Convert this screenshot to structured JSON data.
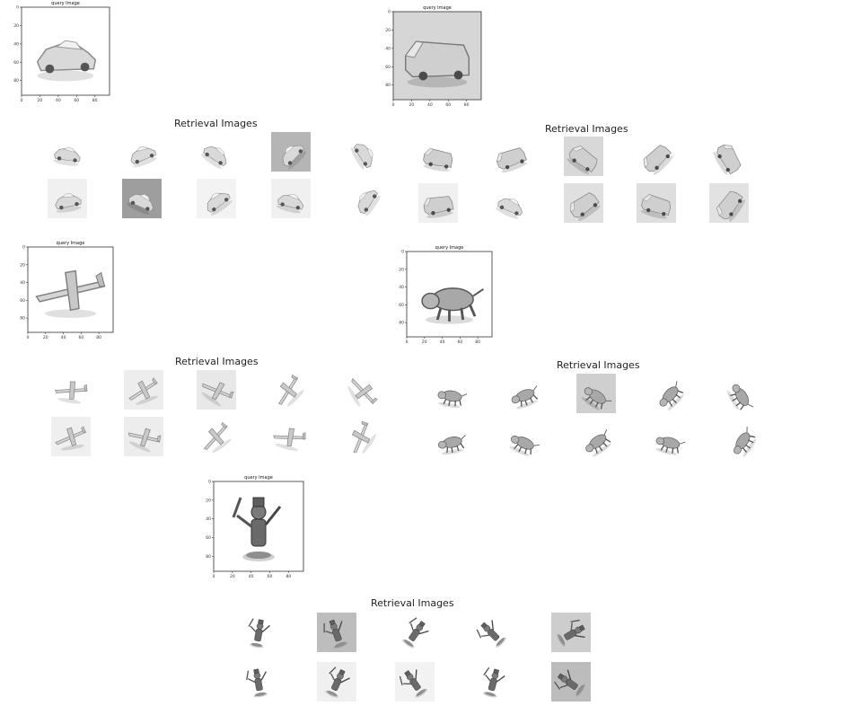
{
  "query_title": "query Image",
  "retrieval_title": "Retrieval Images",
  "axis": {
    "x_ticks": [
      "0",
      "20",
      "40",
      "60",
      "80"
    ],
    "y_ticks": [
      "0",
      "20",
      "40",
      "60",
      "80"
    ]
  },
  "groups": [
    {
      "object": "car-icon",
      "bg": "#ffffff",
      "thumbs": [
        {
          "object": "car-icon",
          "bg": "#ffffff"
        },
        {
          "object": "car-icon",
          "bg": "#ffffff"
        },
        {
          "object": "car-icon",
          "bg": "#ffffff"
        },
        {
          "object": "car-icon",
          "bg": "#b5b5b5"
        },
        {
          "object": "car-icon",
          "bg": "#ffffff"
        },
        {
          "object": "car-icon",
          "bg": "#f0f0f0"
        },
        {
          "object": "car-icon",
          "bg": "#9e9e9e"
        },
        {
          "object": "car-icon",
          "bg": "#f3f3f3"
        },
        {
          "object": "car-icon",
          "bg": "#f0f0f0"
        },
        {
          "object": "car-icon",
          "bg": "#ffffff"
        }
      ]
    },
    {
      "object": "van-icon",
      "bg": "#d6d6d6",
      "thumbs": [
        {
          "object": "van-icon",
          "bg": "#ffffff"
        },
        {
          "object": "van-icon",
          "bg": "#ffffff"
        },
        {
          "object": "van-icon",
          "bg": "#d8d8d8"
        },
        {
          "object": "van-icon",
          "bg": "#ffffff"
        },
        {
          "object": "van-icon",
          "bg": "#ffffff"
        },
        {
          "object": "van-icon",
          "bg": "#f0f0f0"
        },
        {
          "object": "car-icon",
          "bg": "#ffffff"
        },
        {
          "object": "van-icon",
          "bg": "#e0e0e0"
        },
        {
          "object": "van-icon",
          "bg": "#dedede"
        },
        {
          "object": "van-icon",
          "bg": "#e2e2e2"
        }
      ]
    },
    {
      "object": "airplane-icon",
      "bg": "#ffffff",
      "thumbs": [
        {
          "object": "airplane-icon",
          "bg": "#ffffff"
        },
        {
          "object": "airplane-icon",
          "bg": "#ededed"
        },
        {
          "object": "airplane-icon",
          "bg": "#e8e8e8"
        },
        {
          "object": "airplane-icon",
          "bg": "#ffffff"
        },
        {
          "object": "airplane-icon",
          "bg": "#ffffff"
        },
        {
          "object": "airplane-icon",
          "bg": "#efefef"
        },
        {
          "object": "airplane-icon",
          "bg": "#ededed"
        },
        {
          "object": "airplane-icon",
          "bg": "#ffffff"
        },
        {
          "object": "airplane-icon",
          "bg": "#ffffff"
        },
        {
          "object": "airplane-icon",
          "bg": "#ffffff"
        }
      ]
    },
    {
      "object": "animal-icon",
      "bg": "#ffffff",
      "thumbs": [
        {
          "object": "animal-icon",
          "bg": "#ffffff"
        },
        {
          "object": "animal-icon",
          "bg": "#ffffff"
        },
        {
          "object": "animal-icon",
          "bg": "#cfcfcf"
        },
        {
          "object": "animal-icon",
          "bg": "#ffffff"
        },
        {
          "object": "animal-icon",
          "bg": "#ffffff"
        },
        {
          "object": "animal-icon",
          "bg": "#ffffff"
        },
        {
          "object": "animal-icon",
          "bg": "#ffffff"
        },
        {
          "object": "animal-icon",
          "bg": "#ffffff"
        },
        {
          "object": "animal-icon",
          "bg": "#ffffff"
        },
        {
          "object": "animal-icon",
          "bg": "#ffffff"
        }
      ]
    },
    {
      "object": "figure-icon",
      "bg": "#ffffff",
      "thumbs": [
        {
          "object": "figure-icon",
          "bg": "#ffffff"
        },
        {
          "object": "figure-icon",
          "bg": "#bdbdbd"
        },
        {
          "object": "figure-icon",
          "bg": "#ffffff"
        },
        {
          "object": "figure-icon",
          "bg": "#ffffff"
        },
        {
          "object": "figure-icon",
          "bg": "#cdcdcd"
        },
        {
          "object": "figure-icon",
          "bg": "#ffffff"
        },
        {
          "object": "figure-icon",
          "bg": "#f0f0f0"
        },
        {
          "object": "figure-icon",
          "bg": "#f2f2f2"
        },
        {
          "object": "figure-icon",
          "bg": "#ffffff"
        },
        {
          "object": "figure-icon",
          "bg": "#bcbcbc"
        }
      ]
    }
  ]
}
